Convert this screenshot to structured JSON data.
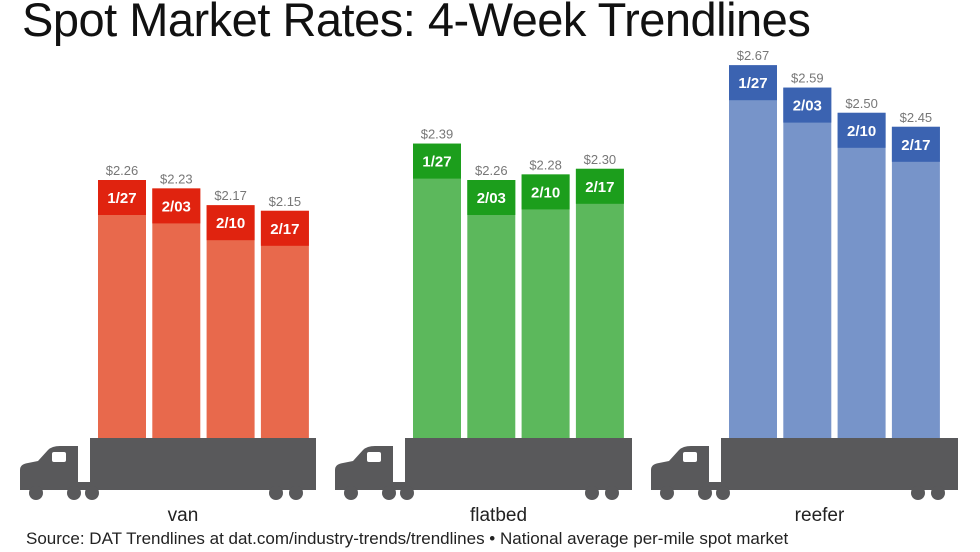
{
  "chart_data": {
    "type": "bar",
    "title": "Spot Market Rates: 4-Week Trendlines",
    "source": "Source: DAT Trendlines at dat.com/industry-trends/trendlines • National average per-mile spot market",
    "categories": [
      "1/27",
      "2/03",
      "2/10",
      "2/17"
    ],
    "series": [
      {
        "name": "van",
        "values": [
          2.26,
          2.23,
          2.17,
          2.15
        ],
        "labels": [
          "$2.26",
          "$2.23",
          "$2.17",
          "$2.15"
        ],
        "color": "#e8694c",
        "dark_color": "#e0230f"
      },
      {
        "name": "flatbed",
        "values": [
          2.39,
          2.26,
          2.28,
          2.3
        ],
        "labels": [
          "$2.39",
          "$2.26",
          "$2.28",
          "$2.30"
        ],
        "color": "#5cb85c",
        "dark_color": "#1c9e1c"
      },
      {
        "name": "reefer",
        "values": [
          2.67,
          2.59,
          2.5,
          2.45
        ],
        "labels": [
          "$2.67",
          "$2.59",
          "$2.50",
          "$2.45"
        ],
        "color": "#7794c9",
        "dark_color": "#3b63b1"
      }
    ],
    "xlabel": "",
    "ylabel": "",
    "grid": false,
    "truck_color": "#59595b"
  }
}
